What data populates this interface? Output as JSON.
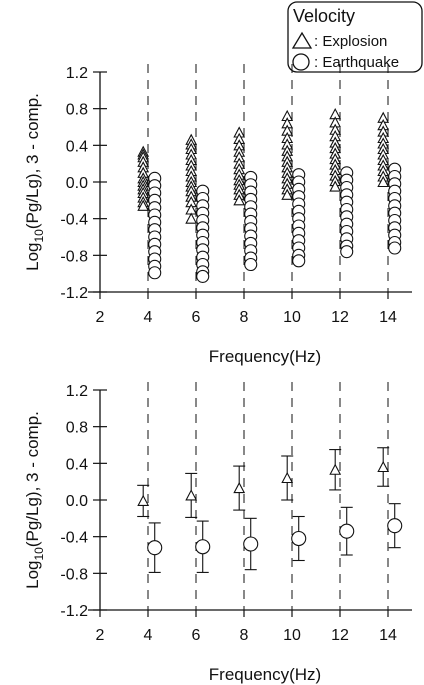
{
  "legend": {
    "title": "Velocity",
    "entries": [
      {
        "marker": "triangle",
        "label": ": Explosion"
      },
      {
        "marker": "circle",
        "label": ": Earthquake"
      }
    ],
    "placement": "top-right"
  },
  "chart_data": [
    {
      "type": "scatter",
      "xlabel": "Frequency(Hz)",
      "ylabel_parts": [
        "Log",
        "10",
        "(Pg/Lg),  3 - comp."
      ],
      "xlim": [
        2,
        15
      ],
      "ylim": [
        -1.2,
        1.2
      ],
      "xticks": [
        2,
        4,
        6,
        8,
        10,
        12,
        14
      ],
      "yticks": [
        "1.2",
        "0.8",
        "0.4",
        "0.0",
        "-0.4",
        "-0.8",
        "-1.2"
      ],
      "guide_lines_x": [
        4,
        6,
        8,
        10,
        12,
        14
      ],
      "grid": false,
      "series": [
        {
          "name": "Explosion",
          "marker": "triangle",
          "x_offset": -0.2,
          "groups": [
            {
              "freq": 4,
              "values": [
                0.33,
                0.3,
                0.27,
                0.22,
                0.16,
                0.1,
                0.04,
                0.0,
                -0.04,
                -0.08,
                -0.12,
                -0.17,
                -0.22,
                -0.26
              ]
            },
            {
              "freq": 6,
              "values": [
                0.46,
                0.41,
                0.36,
                0.3,
                0.24,
                0.18,
                0.12,
                0.06,
                0.0,
                -0.05,
                -0.1,
                -0.16,
                -0.22,
                -0.3,
                -0.4
              ]
            },
            {
              "freq": 8,
              "values": [
                0.54,
                0.47,
                0.4,
                0.33,
                0.27,
                0.2,
                0.14,
                0.08,
                0.02,
                -0.03,
                -0.08,
                -0.14,
                -0.2
              ]
            },
            {
              "freq": 10,
              "values": [
                0.72,
                0.64,
                0.56,
                0.48,
                0.41,
                0.34,
                0.28,
                0.22,
                0.16,
                0.1,
                0.04,
                -0.02,
                -0.08,
                -0.14
              ]
            },
            {
              "freq": 12,
              "values": [
                0.74,
                0.65,
                0.57,
                0.5,
                0.43,
                0.37,
                0.31,
                0.25,
                0.19,
                0.13,
                0.07,
                0.01,
                -0.05
              ]
            },
            {
              "freq": 14,
              "values": [
                0.7,
                0.62,
                0.55,
                0.48,
                0.42,
                0.36,
                0.3,
                0.24,
                0.18,
                0.12,
                0.06,
                0.0
              ]
            }
          ]
        },
        {
          "name": "Earthquake",
          "marker": "circle",
          "x_offset": 0.28,
          "groups": [
            {
              "freq": 4,
              "values": [
                0.04,
                -0.04,
                -0.12,
                -0.2,
                -0.28,
                -0.36,
                -0.44,
                -0.52,
                -0.6,
                -0.68,
                -0.76,
                -0.84,
                -0.92,
                -0.99
              ]
            },
            {
              "freq": 6,
              "values": [
                -0.1,
                -0.18,
                -0.26,
                -0.34,
                -0.42,
                -0.5,
                -0.58,
                -0.66,
                -0.74,
                -0.82,
                -0.9,
                -0.98,
                -1.03
              ]
            },
            {
              "freq": 8,
              "values": [
                0.05,
                -0.03,
                -0.11,
                -0.19,
                -0.27,
                -0.35,
                -0.43,
                -0.51,
                -0.59,
                -0.67,
                -0.75,
                -0.83,
                -0.9
              ]
            },
            {
              "freq": 10,
              "values": [
                0.08,
                0.0,
                -0.08,
                -0.16,
                -0.24,
                -0.32,
                -0.4,
                -0.48,
                -0.56,
                -0.64,
                -0.72,
                -0.8,
                -0.86
              ]
            },
            {
              "freq": 12,
              "values": [
                0.1,
                0.02,
                -0.06,
                -0.14,
                -0.22,
                -0.3,
                -0.38,
                -0.46,
                -0.54,
                -0.62,
                -0.7,
                -0.76
              ]
            },
            {
              "freq": 14,
              "values": [
                0.14,
                0.06,
                -0.02,
                -0.1,
                -0.18,
                -0.26,
                -0.34,
                -0.42,
                -0.5,
                -0.58,
                -0.66,
                -0.72
              ]
            }
          ]
        }
      ]
    },
    {
      "type": "scatter",
      "xlabel": "Frequency(Hz)",
      "ylabel_parts": [
        "Log",
        "10",
        "(Pg/Lg),  3 - comp."
      ],
      "xlim": [
        2,
        15
      ],
      "ylim": [
        -1.2,
        1.2
      ],
      "xticks": [
        2,
        4,
        6,
        8,
        10,
        12,
        14
      ],
      "yticks": [
        "1.2",
        "0.8",
        "0.4",
        "0.0",
        "-0.4",
        "-0.8",
        "-1.2"
      ],
      "guide_lines_x": [
        4,
        6,
        8,
        10,
        12,
        14
      ],
      "grid": false,
      "series": [
        {
          "name": "Explosion",
          "marker": "triangle",
          "x_offset": -0.2,
          "points": [
            {
              "x": 4,
              "y": -0.01,
              "err": 0.17
            },
            {
              "x": 6,
              "y": 0.05,
              "err": 0.24
            },
            {
              "x": 8,
              "y": 0.13,
              "err": 0.24
            },
            {
              "x": 10,
              "y": 0.24,
              "err": 0.24
            },
            {
              "x": 12,
              "y": 0.33,
              "err": 0.22
            },
            {
              "x": 14,
              "y": 0.36,
              "err": 0.21
            }
          ]
        },
        {
          "name": "Earthquake",
          "marker": "circle",
          "x_offset": 0.28,
          "points": [
            {
              "x": 4,
              "y": -0.52,
              "err": 0.27
            },
            {
              "x": 6,
              "y": -0.51,
              "err": 0.28
            },
            {
              "x": 8,
              "y": -0.48,
              "err": 0.28
            },
            {
              "x": 10,
              "y": -0.42,
              "err": 0.24
            },
            {
              "x": 12,
              "y": -0.34,
              "err": 0.26
            },
            {
              "x": 14,
              "y": -0.28,
              "err": 0.24
            }
          ]
        }
      ]
    }
  ]
}
